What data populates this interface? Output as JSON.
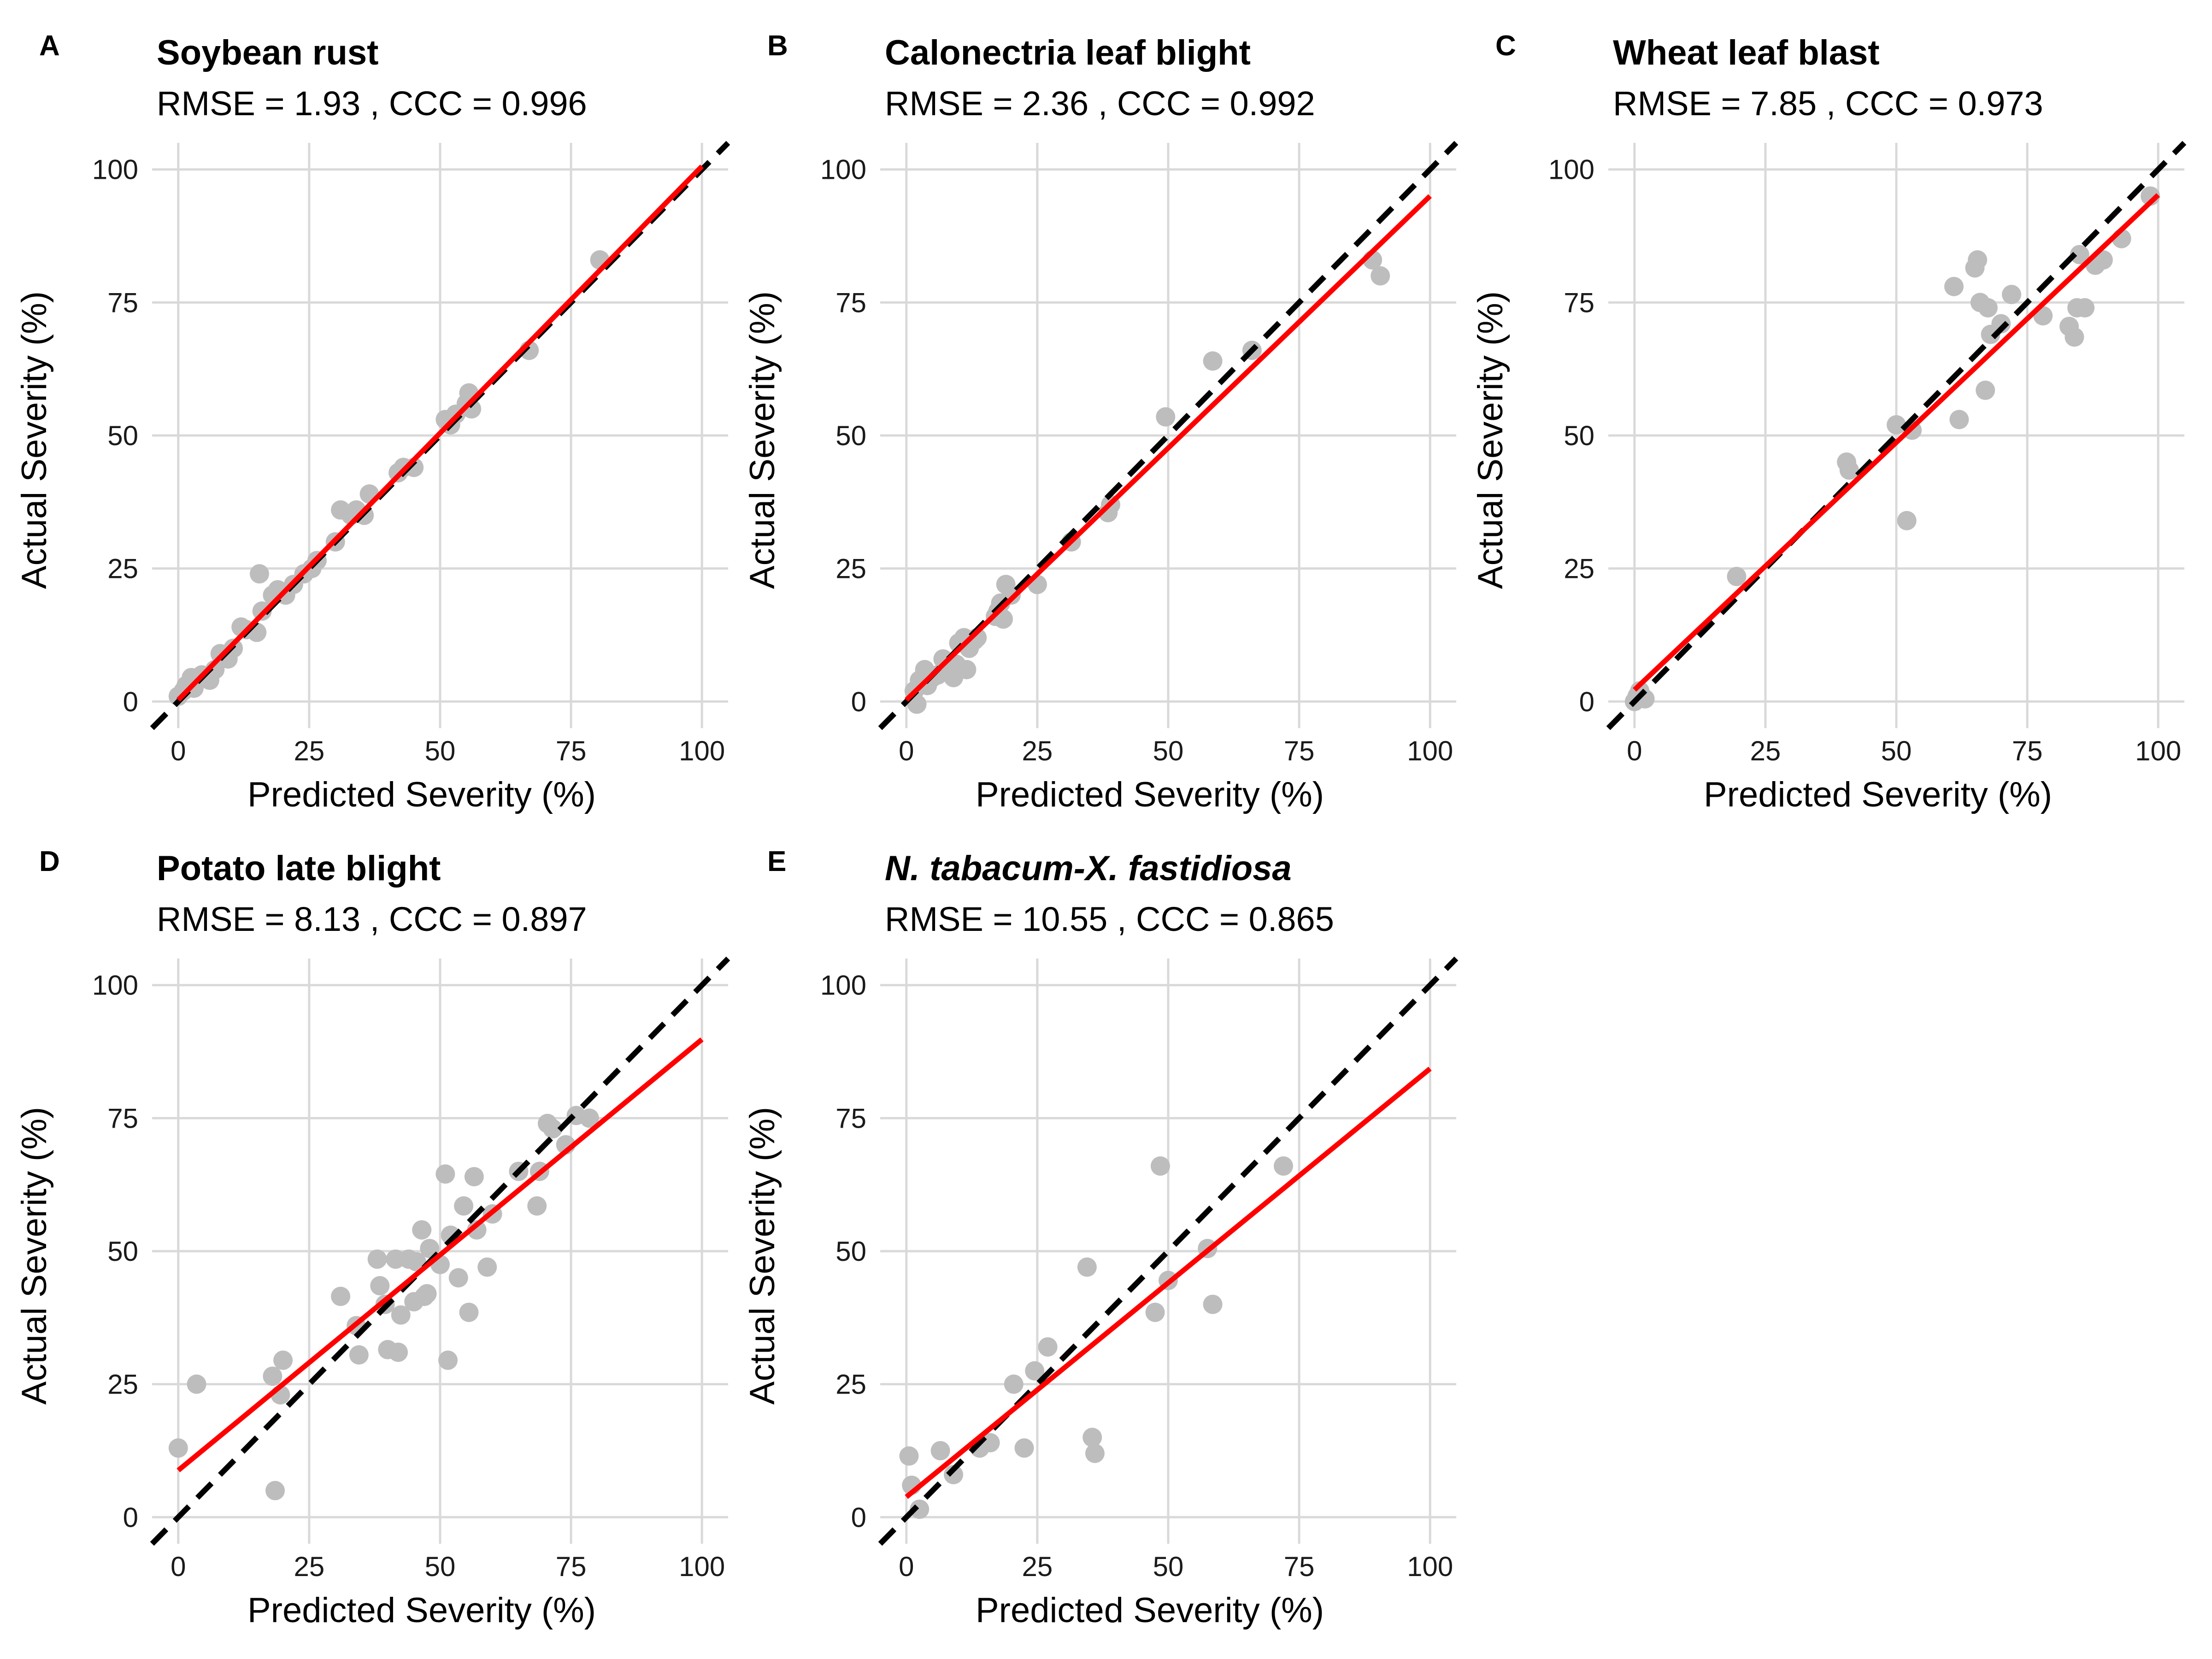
{
  "colors": {
    "points": "#bdbdbd",
    "fit_line": "#ff0000",
    "identity_line": "#000000",
    "grid": "#d9d9d9"
  },
  "chart_data": [
    {
      "panel": "A",
      "type": "scatter",
      "title": "Soybean rust",
      "stats": {
        "rmse_label": "RMSE =",
        "rmse": "1.93",
        "ccc_label": "CCC =",
        "ccc": "0.996"
      },
      "xlabel": "Predicted Severity (%)",
      "ylabel": "Actual Severity (%)",
      "xlim": [
        -5,
        105
      ],
      "ylim": [
        -5,
        105
      ],
      "xticks": [
        0,
        25,
        50,
        75,
        100
      ],
      "yticks": [
        0,
        25,
        50,
        75,
        100
      ],
      "grid": true,
      "identity_line": true,
      "fit_line": {
        "intercept": 0.3,
        "slope": 1.003
      },
      "points": [
        [
          0,
          1
        ],
        [
          1,
          2
        ],
        [
          1.5,
          3
        ],
        [
          2.5,
          4.5
        ],
        [
          3,
          2.5
        ],
        [
          4.5,
          5
        ],
        [
          6,
          4
        ],
        [
          7,
          6
        ],
        [
          8,
          9
        ],
        [
          9.5,
          8
        ],
        [
          10.5,
          10
        ],
        [
          12,
          14
        ],
        [
          13,
          13.5
        ],
        [
          15,
          13
        ],
        [
          16,
          17
        ],
        [
          15.5,
          24
        ],
        [
          18,
          20
        ],
        [
          19,
          21
        ],
        [
          20.5,
          20
        ],
        [
          22,
          22
        ],
        [
          24,
          24
        ],
        [
          25.5,
          25
        ],
        [
          26.5,
          26.5
        ],
        [
          30,
          30
        ],
        [
          31,
          36
        ],
        [
          33,
          35
        ],
        [
          34,
          36
        ],
        [
          35.5,
          35
        ],
        [
          36.5,
          39
        ],
        [
          42,
          43
        ],
        [
          43,
          44
        ],
        [
          45,
          44
        ],
        [
          51,
          53
        ],
        [
          52,
          52
        ],
        [
          53,
          54
        ],
        [
          55,
          56
        ],
        [
          55.5,
          58
        ],
        [
          56,
          55
        ],
        [
          67,
          66
        ],
        [
          80.5,
          83
        ]
      ]
    },
    {
      "panel": "B",
      "type": "scatter",
      "title": "Calonectria leaf blight",
      "stats": {
        "rmse_label": "RMSE =",
        "rmse": "2.36",
        "ccc_label": "CCC =",
        "ccc": "0.992"
      },
      "xlabel": "Predicted Severity (%)",
      "ylabel": "Actual Severity (%)",
      "xlim": [
        -5,
        105
      ],
      "ylim": [
        -5,
        105
      ],
      "xticks": [
        0,
        25,
        50,
        75,
        100
      ],
      "yticks": [
        0,
        25,
        50,
        75,
        100
      ],
      "grid": true,
      "identity_line": true,
      "fit_line": {
        "intercept": 0.3,
        "slope": 0.947
      },
      "points": [
        [
          2,
          -0.5
        ],
        [
          1.5,
          2
        ],
        [
          2.5,
          4
        ],
        [
          3.5,
          6
        ],
        [
          4,
          3
        ],
        [
          5,
          4.5
        ],
        [
          6,
          5
        ],
        [
          7,
          8
        ],
        [
          7.5,
          6
        ],
        [
          9,
          4.5
        ],
        [
          9.5,
          7
        ],
        [
          10,
          11
        ],
        [
          11,
          12
        ],
        [
          11.5,
          6
        ],
        [
          12,
          10
        ],
        [
          13,
          11.5
        ],
        [
          13.5,
          12
        ],
        [
          17,
          16
        ],
        [
          17.5,
          17
        ],
        [
          18,
          18.5
        ],
        [
          18.5,
          15.5
        ],
        [
          19,
          22
        ],
        [
          20,
          20
        ],
        [
          25,
          22
        ],
        [
          31.5,
          30
        ],
        [
          38.5,
          35.5
        ],
        [
          39,
          37
        ],
        [
          49.5,
          53.5
        ],
        [
          58.5,
          64
        ],
        [
          66,
          66
        ],
        [
          89,
          83
        ],
        [
          90.5,
          80
        ]
      ]
    },
    {
      "panel": "C",
      "type": "scatter",
      "title": "Wheat leaf blast",
      "stats": {
        "rmse_label": "RMSE =",
        "rmse": "7.85",
        "ccc_label": "CCC =",
        "ccc": "0.973"
      },
      "xlabel": "Predicted Severity (%)",
      "ylabel": "Actual Severity (%)",
      "xlim": [
        -5,
        105
      ],
      "ylim": [
        -5,
        105
      ],
      "xticks": [
        0,
        25,
        50,
        75,
        100
      ],
      "yticks": [
        0,
        25,
        50,
        75,
        100
      ],
      "grid": true,
      "identity_line": true,
      "fit_line": {
        "intercept": 2.2,
        "slope": 0.93
      },
      "points": [
        [
          0,
          0
        ],
        [
          0.5,
          1
        ],
        [
          1,
          2
        ],
        [
          2,
          0.5
        ],
        [
          19.5,
          23.5
        ],
        [
          40.5,
          45
        ],
        [
          41,
          43.5
        ],
        [
          50,
          52
        ],
        [
          52,
          34
        ],
        [
          53,
          51
        ],
        [
          61,
          78
        ],
        [
          62,
          53
        ],
        [
          65,
          81.5
        ],
        [
          65.5,
          83
        ],
        [
          66,
          75
        ],
        [
          67,
          58.5
        ],
        [
          67.5,
          74
        ],
        [
          68,
          69
        ],
        [
          70,
          71
        ],
        [
          72,
          76.5
        ],
        [
          78,
          72.5
        ],
        [
          83,
          70.5
        ],
        [
          84,
          68.5
        ],
        [
          84.5,
          74
        ],
        [
          85,
          84
        ],
        [
          86,
          74
        ],
        [
          88,
          82
        ],
        [
          89.5,
          83
        ],
        [
          93,
          87
        ],
        [
          98.5,
          95
        ]
      ]
    },
    {
      "panel": "D",
      "type": "scatter",
      "title": "Potato late blight",
      "stats": {
        "rmse_label": "RMSE =",
        "rmse": "8.13",
        "ccc_label": "CCC =",
        "ccc": "0.897"
      },
      "xlabel": "Predicted Severity (%)",
      "ylabel": "Actual Severity (%)",
      "xlim": [
        -5,
        105
      ],
      "ylim": [
        -5,
        105
      ],
      "xticks": [
        0,
        25,
        50,
        75,
        100
      ],
      "yticks": [
        0,
        25,
        50,
        75,
        100
      ],
      "grid": true,
      "identity_line": true,
      "fit_line": {
        "intercept": 8.8,
        "slope": 0.81
      },
      "points": [
        [
          0,
          13
        ],
        [
          3.5,
          25
        ],
        [
          18,
          26.5
        ],
        [
          18.5,
          5
        ],
        [
          19.5,
          23
        ],
        [
          20,
          29.5
        ],
        [
          31,
          41.5
        ],
        [
          34,
          36
        ],
        [
          34.5,
          30.5
        ],
        [
          38,
          48.5
        ],
        [
          38.5,
          43.5
        ],
        [
          39.5,
          40
        ],
        [
          40,
          31.5
        ],
        [
          41.5,
          48.5
        ],
        [
          42,
          31
        ],
        [
          42.5,
          38
        ],
        [
          44,
          48.5
        ],
        [
          45,
          40.5
        ],
        [
          45.5,
          48
        ],
        [
          46.5,
          54
        ],
        [
          47,
          41.5
        ],
        [
          47.5,
          42
        ],
        [
          48,
          50.5
        ],
        [
          50,
          47.5
        ],
        [
          51,
          64.5
        ],
        [
          51.5,
          29.5
        ],
        [
          52,
          53
        ],
        [
          53.5,
          45
        ],
        [
          54.5,
          58.5
        ],
        [
          55.5,
          38.5
        ],
        [
          56.5,
          64
        ],
        [
          57,
          54
        ],
        [
          59,
          47
        ],
        [
          60,
          57
        ],
        [
          65,
          65
        ],
        [
          68.5,
          58.5
        ],
        [
          69,
          65
        ],
        [
          70.5,
          74
        ],
        [
          71.5,
          73
        ],
        [
          74,
          70
        ],
        [
          76,
          75.5
        ],
        [
          78.5,
          75
        ]
      ]
    },
    {
      "panel": "E",
      "type": "scatter",
      "title": "N. tabacum-X. fastidiosa",
      "stats": {
        "rmse_label": "RMSE =",
        "rmse": "10.55",
        "ccc_label": "CCC =",
        "ccc": "0.865"
      },
      "xlabel": "Predicted Severity (%)",
      "ylabel": "Actual Severity (%)",
      "xlim": [
        -5,
        105
      ],
      "ylim": [
        -5,
        105
      ],
      "xticks": [
        0,
        25,
        50,
        75,
        100
      ],
      "yticks": [
        0,
        25,
        50,
        75,
        100
      ],
      "grid": true,
      "identity_line": true,
      "fit_line": {
        "intercept": 3.8,
        "slope": 0.805
      },
      "points": [
        [
          0.5,
          11.5
        ],
        [
          1,
          6
        ],
        [
          2.5,
          1.5
        ],
        [
          6.5,
          12.5
        ],
        [
          9,
          8
        ],
        [
          14,
          13
        ],
        [
          16,
          14
        ],
        [
          20.5,
          25
        ],
        [
          22.5,
          13
        ],
        [
          24.5,
          27.5
        ],
        [
          27,
          32
        ],
        [
          34.5,
          47
        ],
        [
          35.5,
          15
        ],
        [
          36,
          12
        ],
        [
          47.5,
          38.5
        ],
        [
          48.5,
          66
        ],
        [
          50,
          44.5
        ],
        [
          57.5,
          50.5
        ],
        [
          58.5,
          40
        ],
        [
          72,
          66
        ]
      ]
    }
  ]
}
